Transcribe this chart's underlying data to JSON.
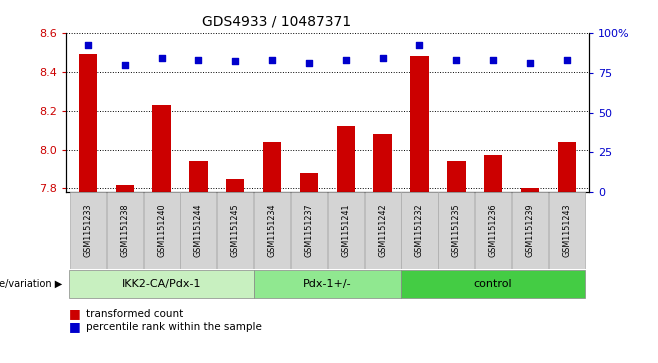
{
  "title": "GDS4933 / 10487371",
  "samples": [
    "GSM1151233",
    "GSM1151238",
    "GSM1151240",
    "GSM1151244",
    "GSM1151245",
    "GSM1151234",
    "GSM1151237",
    "GSM1151241",
    "GSM1151242",
    "GSM1151232",
    "GSM1151235",
    "GSM1151236",
    "GSM1151239",
    "GSM1151243"
  ],
  "bar_values": [
    8.49,
    7.82,
    8.23,
    7.94,
    7.85,
    8.04,
    7.88,
    8.12,
    8.08,
    8.48,
    7.94,
    7.97,
    7.8,
    8.04
  ],
  "percentile_values": [
    92,
    80,
    84,
    83,
    82,
    83,
    81,
    83,
    84,
    92,
    83,
    83,
    81,
    83
  ],
  "ylim_left": [
    7.78,
    8.6
  ],
  "ylim_right": [
    0,
    100
  ],
  "yticks_left": [
    7.8,
    8.0,
    8.2,
    8.4,
    8.6
  ],
  "yticks_right": [
    0,
    25,
    50,
    75,
    100
  ],
  "ytick_labels_right": [
    "0",
    "25",
    "50",
    "75",
    "100%"
  ],
  "groups": [
    {
      "label": "IKK2-CA/Pdx-1",
      "start": 0,
      "end": 5,
      "color": "#c8f0c0"
    },
    {
      "label": "Pdx-1+/-",
      "start": 5,
      "end": 9,
      "color": "#90e890"
    },
    {
      "label": "control",
      "start": 9,
      "end": 14,
      "color": "#44cc44"
    }
  ],
  "bar_color": "#cc0000",
  "dot_color": "#0000cc",
  "legend_bar": "transformed count",
  "legend_dot": "percentile rank within the sample",
  "bar_width": 0.5,
  "bg_color": "#ffffff",
  "tick_color_left": "#cc0000",
  "tick_color_right": "#0000cc",
  "sample_box_color": "#d4d4d4",
  "sample_box_edge": "#aaaaaa"
}
